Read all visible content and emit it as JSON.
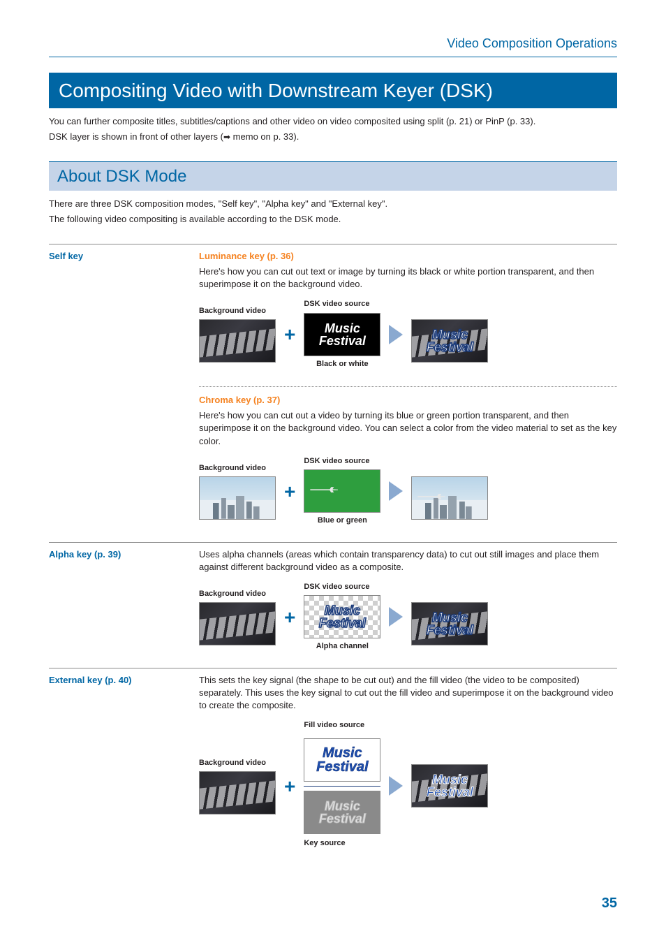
{
  "header": {
    "breadcrumb": "Video Composition Operations"
  },
  "title": "Compositing Video with Downstream Keyer (DSK)",
  "intro": {
    "line1": "You can further composite titles, subtitles/captions and other video on video composited using split (p. 21) or PinP (p. 33).",
    "line2_a": "DSK layer is shown in front of other layers (",
    "line2_b": " memo on p. 33)."
  },
  "section": {
    "heading": "About DSK Mode",
    "p1": "There are three DSK composition modes, \"Self key\", \"Alpha key\" and \"External key\".",
    "p2": "The following video compositing is available according to the DSK mode."
  },
  "selfkey": {
    "label": "Self key",
    "lum": {
      "title": "Luminance key (p. 36)",
      "desc": "Here's how you can cut out text or image by turning its black or white portion transparent, and then superimpose it on the background video.",
      "bg_label": "Background video",
      "src_label": "DSK video source",
      "bot_label": "Black or white"
    },
    "chroma": {
      "title": "Chroma key (p. 37)",
      "desc": "Here's how you can cut out a video by turning its blue or green portion transparent, and then superimpose it on the background video. You can select a color from the video material to set as the key color.",
      "bg_label": "Background video",
      "src_label": "DSK video source",
      "bot_label": "Blue or green"
    }
  },
  "alpha": {
    "label": "Alpha key (p. 39)",
    "desc": "Uses alpha channels (areas which contain transparency data) to cut out still images and place them against different background video as a composite.",
    "bg_label": "Background video",
    "src_label": "DSK video source",
    "bot_label": "Alpha channel"
  },
  "external": {
    "label": "External key (p. 40)",
    "desc": "This sets the key signal (the shape to be cut out) and the fill video (the video to be composited) separately. This uses the key signal to cut out the fill video and superimpose it on the background video to create the composite.",
    "bg_label": "Background video",
    "fill_label": "Fill video source",
    "key_label": "Key source"
  },
  "overlay": {
    "music": "Music",
    "festival": "Festival"
  },
  "page_number": "35",
  "colors": {
    "brand_blue": "#0066a4",
    "orange": "#f58220",
    "section_bg": "#c5d4e8",
    "arrow_fill": "#8aa9d0",
    "green_key": "#2e9e3e"
  }
}
